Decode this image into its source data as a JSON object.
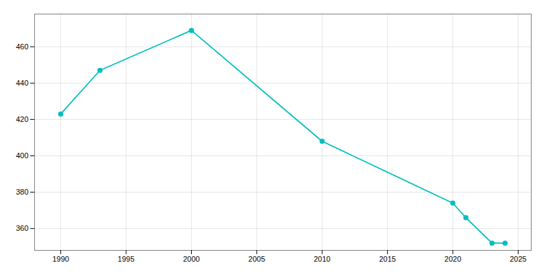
{
  "chart_data": {
    "type": "line",
    "x": [
      1990,
      1993,
      2000,
      2010,
      2020,
      2021,
      2023,
      2024
    ],
    "values": [
      423,
      447,
      469,
      408,
      374,
      366,
      352,
      352
    ],
    "color": "#00BFBF",
    "marker": "circle",
    "xlim": [
      1988,
      2026
    ],
    "ylim": [
      348,
      478
    ],
    "xticks": [
      1990,
      1995,
      2000,
      2005,
      2010,
      2015,
      2020,
      2025
    ],
    "yticks": [
      360,
      380,
      400,
      420,
      440,
      460
    ],
    "grid": true
  }
}
